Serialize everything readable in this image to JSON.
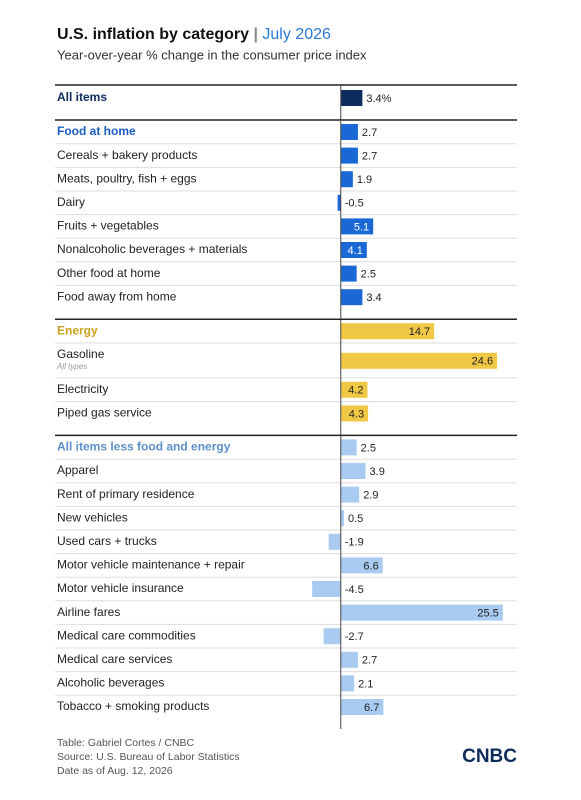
{
  "chart_data": {
    "type": "bar",
    "title": "U.S. inflation by category",
    "title_suffix": "July 2026",
    "subtitle": "Year-over-year % change in the consumer price index",
    "xlim": [
      -5,
      26
    ],
    "sections": [
      {
        "color": "#0d2b5c",
        "header_color": "#0d2b5c",
        "categories": [
          "All items"
        ],
        "values": [
          3.4
        ],
        "value_labels": [
          "3.4%"
        ]
      },
      {
        "color": "#1a68d6",
        "header_color": "#1a5cc0",
        "categories": [
          "Food at home",
          "Cereals + bakery products",
          "Meats, poultry, fish + eggs",
          "Dairy",
          "Fruits + vegetables",
          "Nonalcoholic beverages + materials",
          "Other food at home",
          "Food away from home"
        ],
        "values": [
          2.7,
          2.7,
          1.9,
          -0.5,
          5.1,
          4.1,
          2.5,
          3.4
        ]
      },
      {
        "color": "#f0c846",
        "header_color": "#c9a11f",
        "categories": [
          "Energy",
          "Gasoline",
          "Electricity",
          "Piped gas service"
        ],
        "category_notes": [
          null,
          "All types",
          null,
          null
        ],
        "values": [
          14.7,
          24.6,
          4.2,
          4.3
        ]
      },
      {
        "color": "#a9cbf2",
        "header_color": "#5d8fc8",
        "categories": [
          "All items less food and energy",
          "Apparel",
          "Rent of primary residence",
          "New vehicles",
          "Used cars + trucks",
          "Motor vehicle maintenance + repair",
          "Motor vehicle insurance",
          "Airline fares",
          "Medical care commodities",
          "Medical care services",
          "Alcoholic beverages",
          "Tobacco + smoking products"
        ],
        "values": [
          2.5,
          3.9,
          2.9,
          0.5,
          -1.9,
          6.6,
          -4.5,
          25.5,
          -2.7,
          2.7,
          2.1,
          6.7
        ]
      }
    ],
    "footer": [
      "Table: Gabriel Cortes / CNBC",
      "Source: U.S. Bureau of Labor Statistics",
      "Date as of Aug. 12, 2026"
    ],
    "logo": "CNBC"
  }
}
